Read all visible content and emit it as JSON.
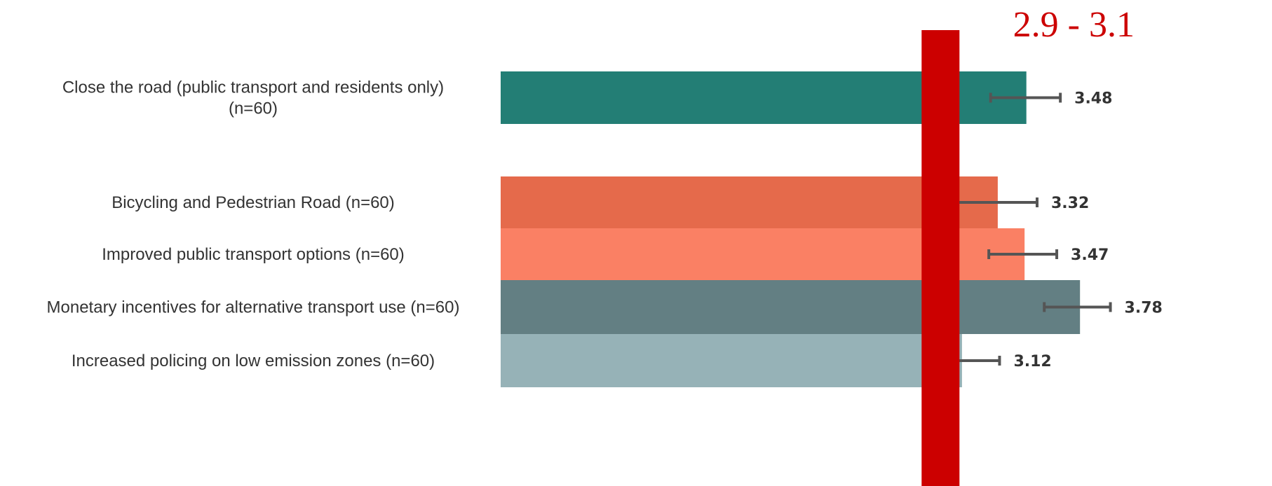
{
  "chart_data": {
    "type": "bar",
    "orientation": "horizontal",
    "categories": [
      "Close the road (public transport and residents only) (n=60)",
      "Bicycling and Pedestrian Road (n=60)",
      "Improved public transport options (n=60)",
      "Monetary incentives for alternative transport use (n=60)",
      "Increased policing on low emission zones (n=60)"
    ],
    "category_lines": [
      [
        "Close the road (public transport and residents only)",
        "(n=60)"
      ],
      [
        "Bicycling and Pedestrian Road (n=60)"
      ],
      [
        "Improved public transport options (n=60)"
      ],
      [
        "Monetary incentives for alternative transport use (n=60)"
      ],
      [
        "Increased policing on low emission zones (n=60)"
      ]
    ],
    "values": [
      3.48,
      3.32,
      3.47,
      3.78,
      3.12
    ],
    "value_labels": [
      "3.48",
      "3.32",
      "3.47",
      "3.78",
      "3.12"
    ],
    "error_low": [
      3.28,
      3.08,
      3.27,
      3.58,
      2.97
    ],
    "error_high": [
      3.67,
      3.54,
      3.65,
      3.95,
      3.33
    ],
    "colors": [
      "#237e75",
      "#e56a4b",
      "#fa8064",
      "#637f83",
      "#96b2b7"
    ],
    "error_bar_color": "#555555",
    "reference_band": {
      "label": "2.9 - 3.1",
      "value": 3.0,
      "color": "#cc0000"
    },
    "axis_visible": false,
    "grid": false,
    "title": "",
    "xlabel": "",
    "ylabel": ""
  }
}
